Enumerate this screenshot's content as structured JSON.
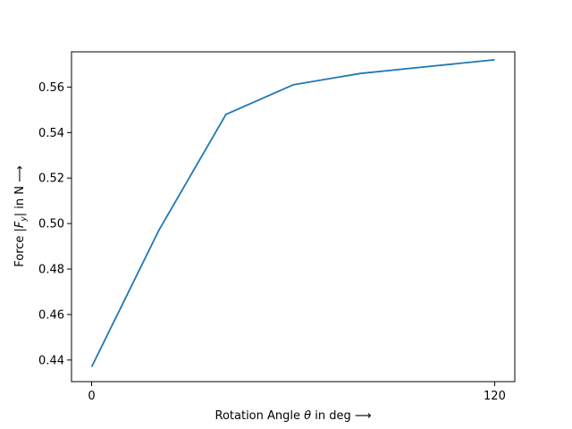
{
  "chart_data": {
    "type": "line",
    "title": "",
    "xlabel": "Rotation Angle θ in deg ⟶",
    "ylabel": "Force |F_y| in N ⟶",
    "xlim": [
      -6,
      126
    ],
    "ylim": [
      0.4305,
      0.5755
    ],
    "x_ticks": [
      0,
      120
    ],
    "x_tick_labels": [
      "0",
      "120"
    ],
    "y_ticks": [
      0.44,
      0.46,
      0.48,
      0.5,
      0.52,
      0.54,
      0.56
    ],
    "y_tick_labels": [
      "0.44",
      "0.46",
      "0.48",
      "0.50",
      "0.52",
      "0.54",
      "0.56"
    ],
    "grid": false,
    "series": [
      {
        "color": "#1f77b4",
        "x": [
          0,
          20,
          40,
          60,
          80,
          100,
          120
        ],
        "y": [
          0.437,
          0.497,
          0.548,
          0.561,
          0.566,
          0.569,
          0.572
        ]
      }
    ]
  }
}
